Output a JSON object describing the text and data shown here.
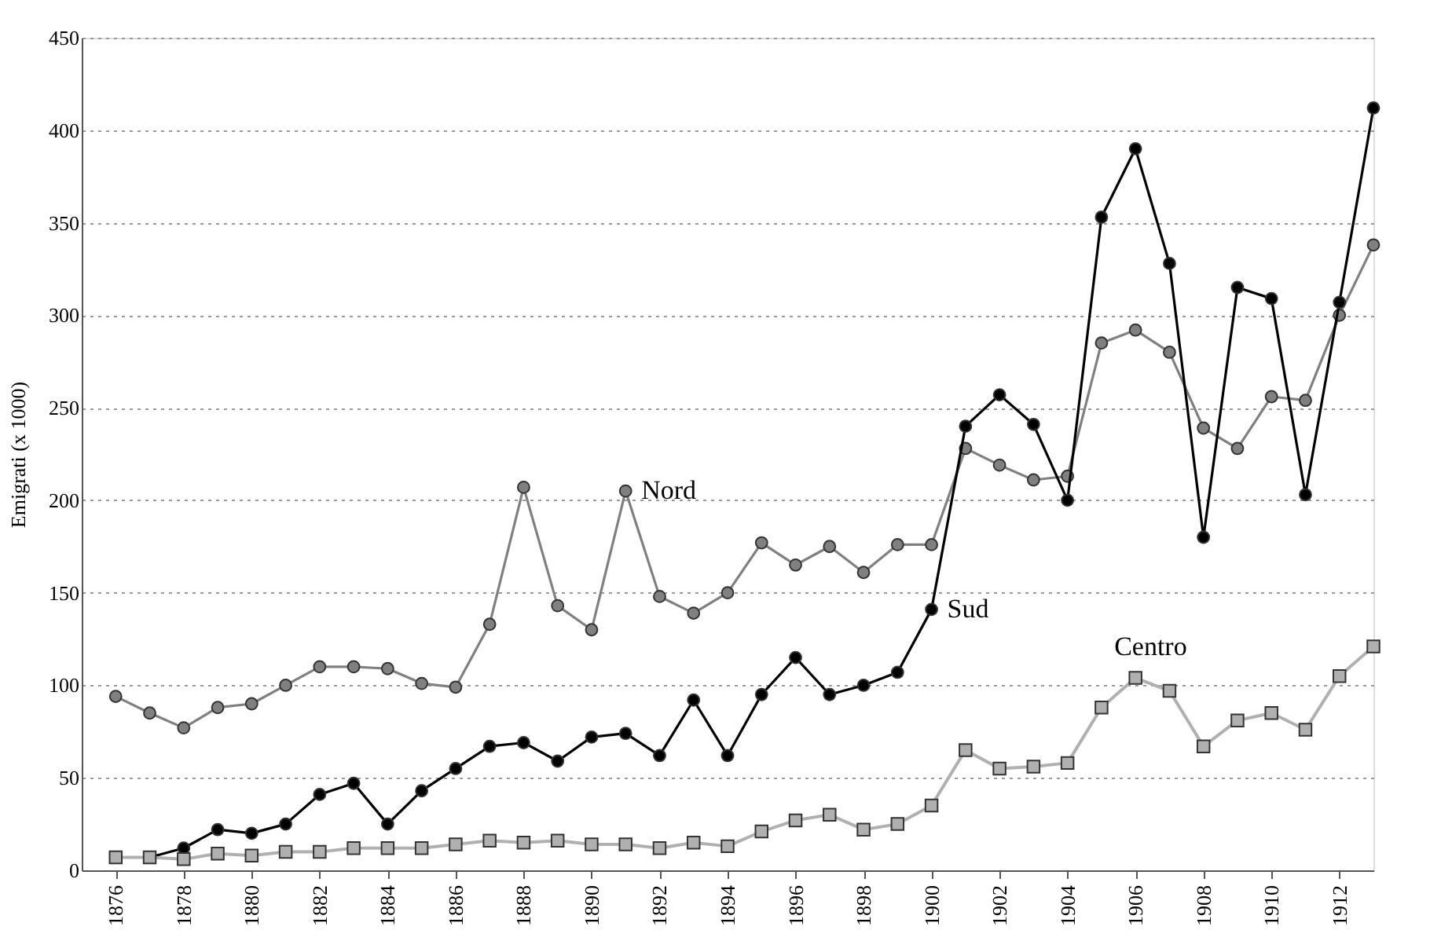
{
  "chart_data": {
    "type": "line",
    "ylabel": "Emigrati (x 1000)",
    "x": [
      1876,
      1877,
      1878,
      1879,
      1880,
      1881,
      1882,
      1883,
      1884,
      1885,
      1886,
      1887,
      1888,
      1889,
      1890,
      1891,
      1892,
      1893,
      1894,
      1895,
      1896,
      1897,
      1898,
      1899,
      1900,
      1901,
      1902,
      1903,
      1904,
      1905,
      1906,
      1907,
      1908,
      1909,
      1910,
      1911,
      1912,
      1913
    ],
    "series": [
      {
        "name": "Nord",
        "color": "#808080",
        "marker": "circle",
        "values": [
          94,
          85,
          77,
          88,
          90,
          100,
          110,
          110,
          109,
          101,
          99,
          133,
          207,
          143,
          130,
          205,
          148,
          139,
          150,
          177,
          165,
          175,
          161,
          176,
          176,
          228,
          219,
          211,
          213,
          285,
          292,
          280,
          239,
          228,
          256,
          254,
          300,
          338
        ]
      },
      {
        "name": "Sud",
        "color": "#000000",
        "marker": "circle",
        "values": [
          7,
          7,
          12,
          22,
          20,
          25,
          41,
          47,
          25,
          43,
          55,
          67,
          69,
          59,
          72,
          74,
          62,
          92,
          62,
          95,
          115,
          95,
          100,
          107,
          141,
          240,
          257,
          241,
          200,
          353,
          390,
          328,
          180,
          315,
          309,
          203,
          307,
          412
        ]
      },
      {
        "name": "Centro",
        "color": "#b0b0b0",
        "marker": "square",
        "values": [
          7,
          7,
          6,
          9,
          8,
          10,
          10,
          12,
          12,
          12,
          14,
          16,
          15,
          16,
          14,
          14,
          12,
          15,
          13,
          21,
          27,
          30,
          22,
          25,
          35,
          65,
          55,
          56,
          58,
          88,
          104,
          97,
          67,
          81,
          85,
          76,
          105,
          121
        ]
      }
    ],
    "xlim": [
      1875,
      1913
    ],
    "xticks": [
      1876,
      1878,
      1880,
      1882,
      1884,
      1886,
      1888,
      1890,
      1892,
      1894,
      1896,
      1898,
      1900,
      1902,
      1904,
      1906,
      1908,
      1910,
      1912
    ],
    "ylim": [
      0,
      450
    ],
    "yticks": [
      0,
      50,
      100,
      150,
      200,
      250,
      300,
      350,
      400,
      450
    ],
    "grid": "y",
    "legend": false,
    "line_style": "solid"
  }
}
